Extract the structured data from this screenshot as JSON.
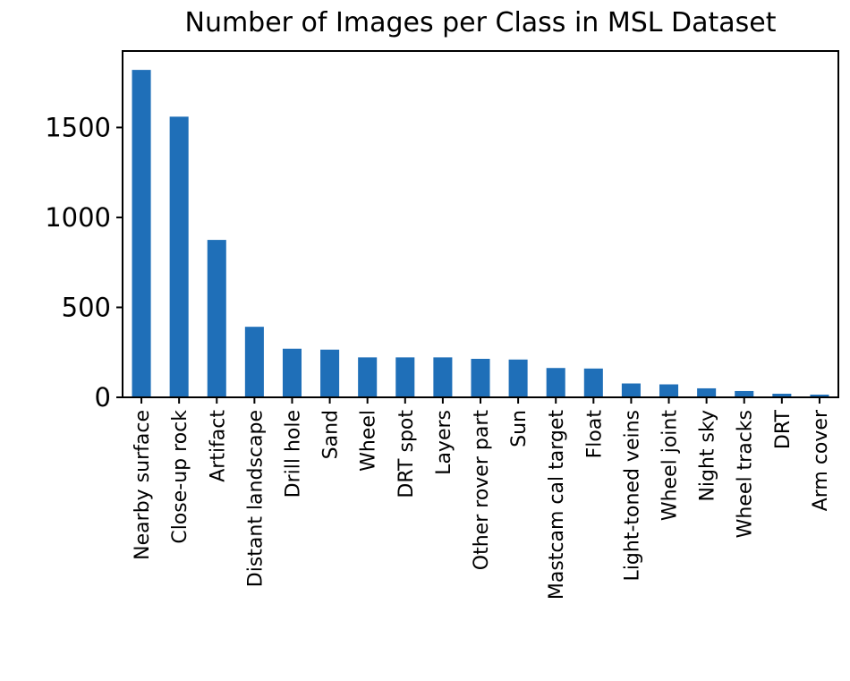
{
  "chart_data": {
    "type": "bar",
    "title": "Number of Images per Class in MSL Dataset",
    "xlabel": "",
    "ylabel": "",
    "categories": [
      "Nearby surface",
      "Close-up rock",
      "Artifact",
      "Distant landscape",
      "Drill hole",
      "Sand",
      "Wheel",
      "DRT spot",
      "Layers",
      "Other rover part",
      "Sun",
      "Mastcam cal target",
      "Float",
      "Light-toned veins",
      "Wheel joint",
      "Night sky",
      "Wheel tracks",
      "DRT",
      "Arm cover"
    ],
    "values": [
      1820,
      1560,
      875,
      392,
      270,
      265,
      222,
      222,
      222,
      214,
      210,
      163,
      160,
      77,
      72,
      50,
      35,
      20,
      15
    ],
    "yticks": [
      0,
      500,
      1000,
      1500
    ],
    "ylim": [
      0,
      1925
    ],
    "bar_color": "#1f6fb8",
    "grid": false,
    "legend": "none"
  }
}
